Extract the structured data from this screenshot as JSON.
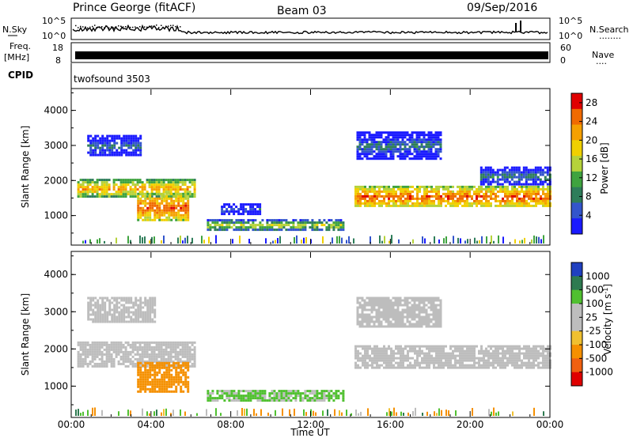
{
  "header": {
    "site": "Prince George (fitACF)",
    "beam": "Beam 03",
    "date": "09/Sep/2016"
  },
  "strip_labels": {
    "nsky": "N.Sky",
    "nsearch": "N.Search",
    "nsearch_dots": "........",
    "freq_line1": "Freq.",
    "freq_line2": "[MHz]",
    "nave": "Nave",
    "nave_dots": "....",
    "cpid": "CPID",
    "cpid_value": "twofsound 3503",
    "noise_ticks_left": [
      "10^5",
      "10^0"
    ],
    "noise_ticks_right": [
      "10^5",
      "10^0"
    ],
    "freq_ticks": [
      "18",
      "8"
    ],
    "nave_ticks": [
      "60",
      "0"
    ]
  },
  "colors": {
    "power_scale": [
      "#1a1aff",
      "#3355cc",
      "#2e7d5a",
      "#3fa33f",
      "#b5d23a",
      "#f0d000",
      "#f5a000",
      "#f06a00",
      "#e00000"
    ],
    "velocity_scale": [
      "#2040c0",
      "#2e7a50",
      "#50c030",
      "#bdbdbd",
      "#bdbdbd",
      "#f0c030",
      "#f59000",
      "#f06010",
      "#e00000"
    ]
  },
  "chart_data": [
    {
      "type": "heatmap",
      "panel": "power",
      "title": "Prince George (fitACF)",
      "xlabel": "Time UT",
      "ylabel": "Slant Range [km]",
      "xticks": [
        "00:00",
        "04:00",
        "08:00",
        "12:00",
        "16:00",
        "20:00",
        "00:00"
      ],
      "xlim": [
        0,
        24
      ],
      "yticks": [
        "1000",
        "2000",
        "3000",
        "4000"
      ],
      "ylim": [
        180,
        4600
      ],
      "colorbar": {
        "label": "Power [dB]",
        "ticks": [
          "4",
          "8",
          "12",
          "16",
          "20",
          "24",
          "28"
        ],
        "range": [
          0,
          30
        ]
      },
      "regions": [
        {
          "t": [
            0.3,
            6.2
          ],
          "r": [
            1550,
            2050
          ],
          "value": 22
        },
        {
          "t": [
            3.3,
            5.8
          ],
          "r": [
            850,
            1650
          ],
          "value": 26
        },
        {
          "t": [
            0.8,
            3.5
          ],
          "r": [
            2700,
            3300
          ],
          "value": 8
        },
        {
          "t": [
            6.8,
            13.7
          ],
          "r": [
            600,
            900
          ],
          "value": 16
        },
        {
          "t": [
            7.5,
            9.5
          ],
          "r": [
            1050,
            1350
          ],
          "value": 6
        },
        {
          "t": [
            14.2,
            24.0
          ],
          "r": [
            1250,
            1850
          ],
          "value": 26
        },
        {
          "t": [
            14.3,
            18.5
          ],
          "r": [
            2600,
            3400
          ],
          "value": 8
        },
        {
          "t": [
            20.5,
            24.0
          ],
          "r": [
            1900,
            2400
          ],
          "value": 9
        }
      ]
    },
    {
      "type": "heatmap",
      "panel": "velocity",
      "xlabel": "Time UT",
      "ylabel": "Slant Range [km]",
      "xticks": [
        "00:00",
        "04:00",
        "08:00",
        "12:00",
        "16:00",
        "20:00",
        "00:00"
      ],
      "xlim": [
        0,
        24
      ],
      "yticks": [
        "1000",
        "2000",
        "3000",
        "4000"
      ],
      "ylim": [
        180,
        4600
      ],
      "colorbar": {
        "label": "Velocity [m s^-1]",
        "ticks": [
          "1000",
          "500",
          "100",
          "25",
          "-25",
          "-100",
          "-500",
          "-1000"
        ]
      },
      "regions": [
        {
          "t": [
            0.3,
            6.2
          ],
          "r": [
            1550,
            2200
          ],
          "value": 0
        },
        {
          "t": [
            3.3,
            5.8
          ],
          "r": [
            850,
            1650
          ],
          "value": -150
        },
        {
          "t": [
            0.8,
            4.2
          ],
          "r": [
            2700,
            3400
          ],
          "value": 0
        },
        {
          "t": [
            6.8,
            13.7
          ],
          "r": [
            600,
            900
          ],
          "value": 80
        },
        {
          "t": [
            14.2,
            24.0
          ],
          "r": [
            1500,
            2100
          ],
          "value": 0
        },
        {
          "t": [
            14.3,
            18.5
          ],
          "r": [
            2600,
            3400
          ],
          "value": 0
        }
      ]
    }
  ]
}
